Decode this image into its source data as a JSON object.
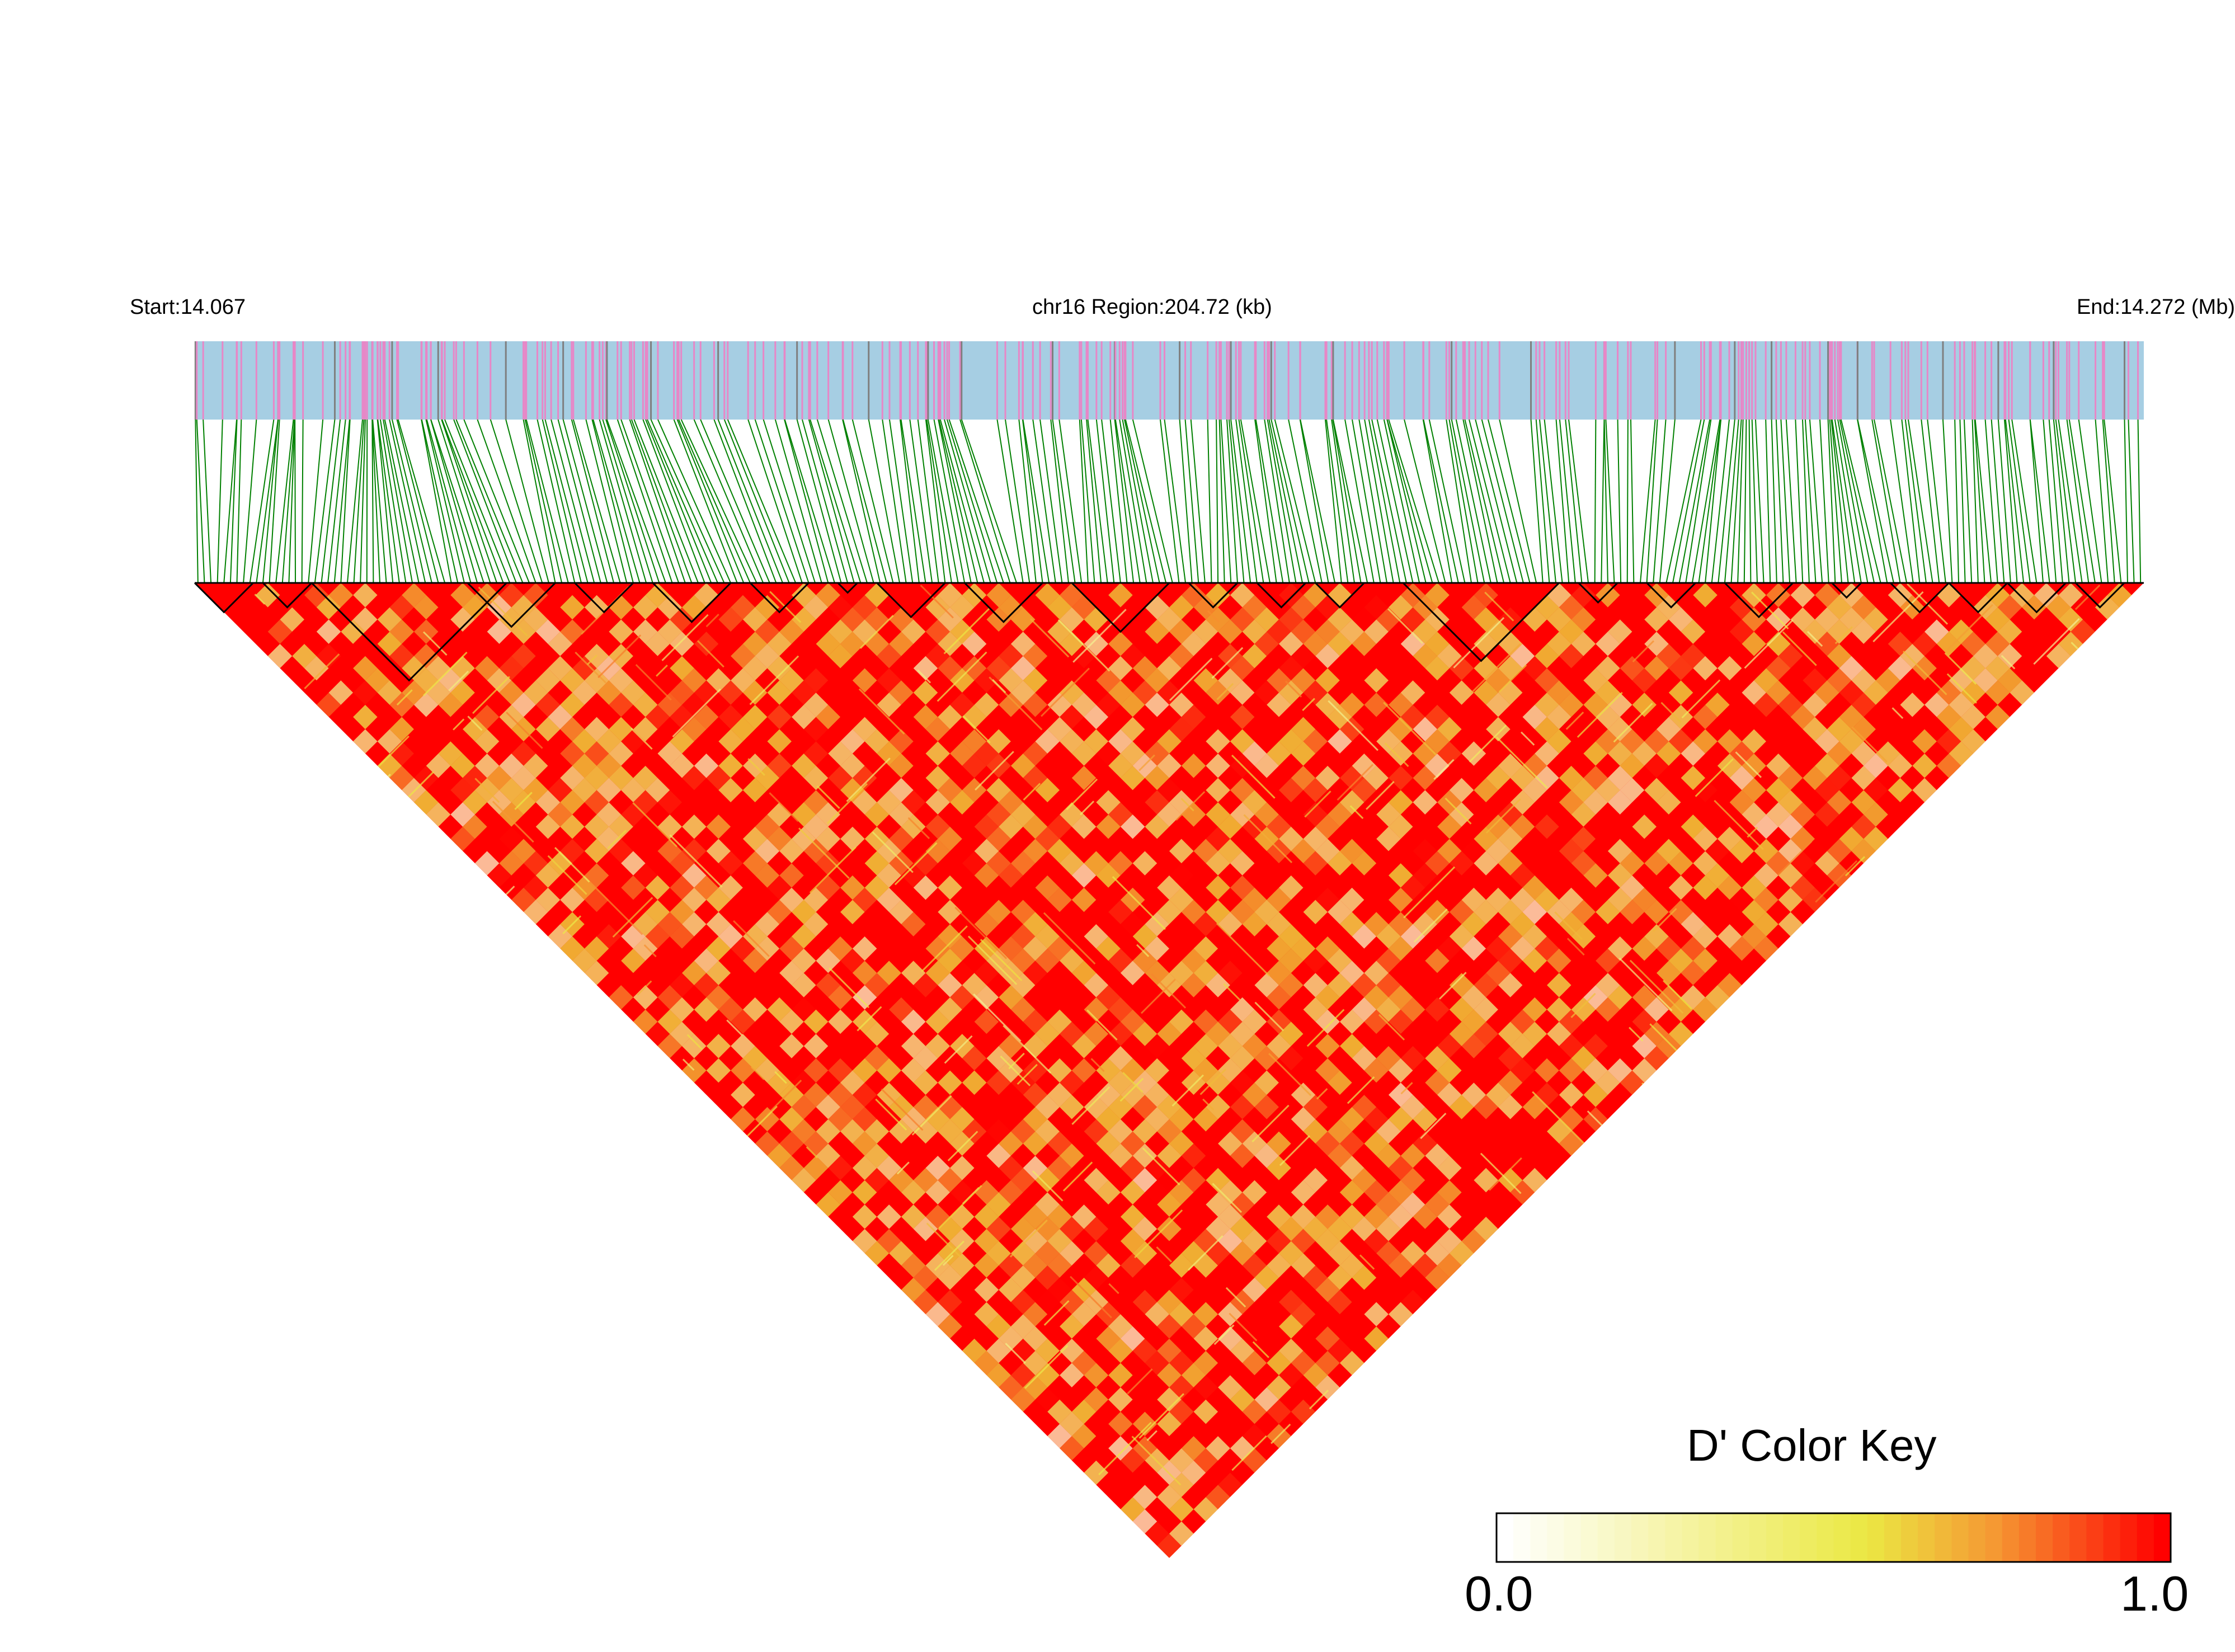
{
  "chart_data": {
    "type": "heatmap",
    "title": "",
    "header": {
      "start": "Start:14.067",
      "region": "chr16 Region:204.72 (kb)",
      "end": "End:14.272 (Mb)"
    },
    "region": {
      "chromosome": "chr16",
      "start_mb": 14.067,
      "end_mb": 14.272,
      "length_kb": 204.72
    },
    "metric": "D'",
    "colors": {
      "track_background": "#a6cee3",
      "track_variant": "#e787c7",
      "track_variant_dark": "#7f7f7f",
      "connector_line": "#008000",
      "block_outline": "#000000",
      "high": "#ff0000",
      "mid": "#ebe843",
      "low": "#ffffff"
    },
    "color_key": {
      "title": "D' Color Key",
      "min_label": "0.0",
      "max_label": "1.0",
      "range": [
        0.0,
        1.0
      ]
    }
  }
}
